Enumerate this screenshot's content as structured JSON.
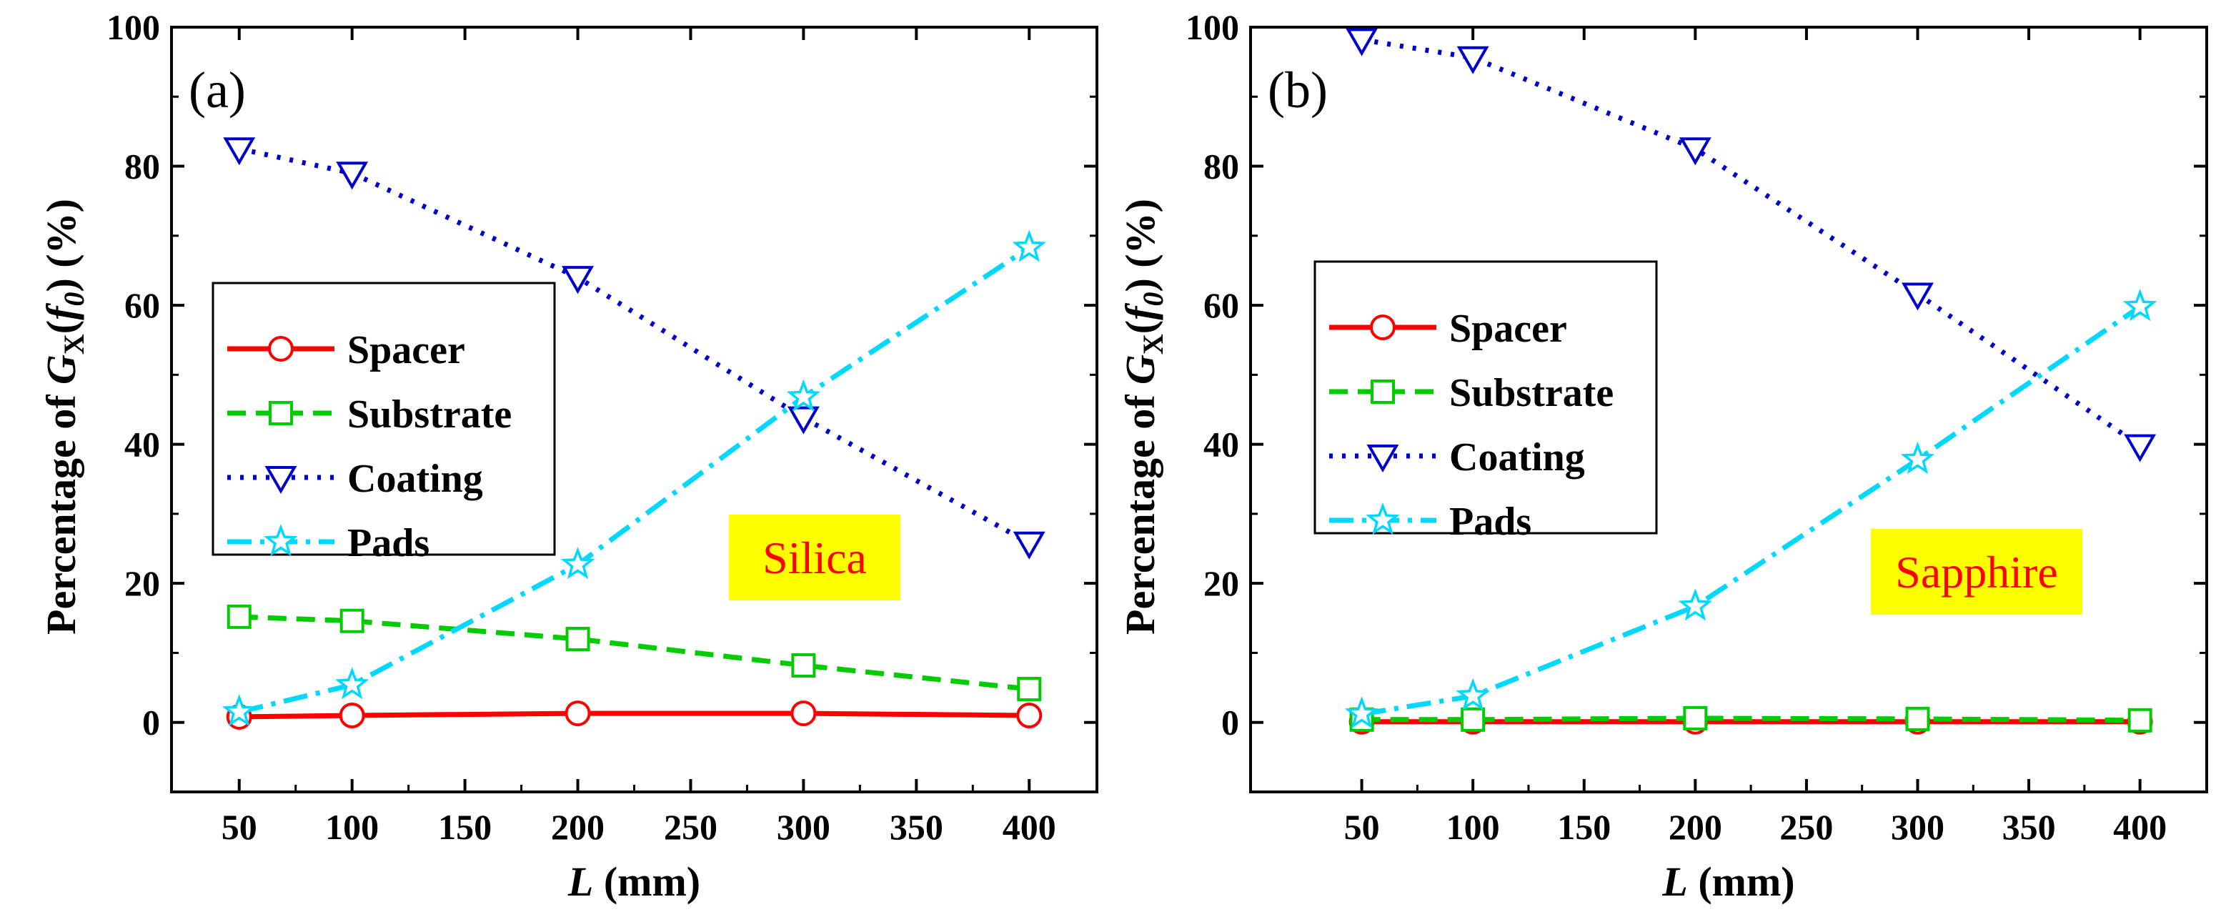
{
  "chart_data": [
    {
      "type": "line",
      "panel_label": "(a)",
      "badge": "Silica",
      "ylabel": {
        "prefix": "Percentage of ",
        "G": "G",
        "sub": "X",
        "open": "(",
        "f": "f",
        "fsub": "0",
        "close": ")",
        "suffix": " (%)"
      },
      "xlabel": {
        "var": "L",
        "unit": " (mm)"
      },
      "xlim": [
        20,
        430
      ],
      "ylim": [
        -10,
        100
      ],
      "xticks": [
        50,
        100,
        150,
        200,
        250,
        300,
        350,
        400
      ],
      "yticks": [
        0,
        20,
        40,
        60,
        80,
        100
      ],
      "x": [
        50,
        100,
        200,
        300,
        400
      ],
      "series": [
        {
          "name": "Spacer",
          "values": [
            0.8,
            1.0,
            1.3,
            1.3,
            1.0
          ]
        },
        {
          "name": "Substrate",
          "values": [
            15.2,
            14.6,
            12.0,
            8.2,
            4.8
          ]
        },
        {
          "name": "Coating",
          "values": [
            82.5,
            79.0,
            64.0,
            43.8,
            25.8
          ]
        },
        {
          "name": "Pads",
          "values": [
            1.5,
            5.4,
            22.7,
            46.8,
            68.3
          ]
        }
      ]
    },
    {
      "type": "line",
      "panel_label": "(b)",
      "badge": "Sapphire",
      "ylabel": {
        "prefix": "Percentage of ",
        "G": "G",
        "sub": "X",
        "open": "(",
        "f": "f",
        "fsub": "0",
        "close": ")",
        "suffix": " (%)"
      },
      "xlabel": {
        "var": "L",
        "unit": " (mm)"
      },
      "xlim": [
        0,
        430
      ],
      "ylim": [
        -10,
        100
      ],
      "xticks": [
        50,
        100,
        150,
        200,
        250,
        300,
        350,
        400
      ],
      "yticks": [
        0,
        20,
        40,
        60,
        80,
        100
      ],
      "x": [
        50,
        100,
        200,
        300,
        400
      ],
      "series": [
        {
          "name": "Spacer",
          "values": [
            0.1,
            0.1,
            0.1,
            0.1,
            0.1
          ]
        },
        {
          "name": "Substrate",
          "values": [
            0.4,
            0.4,
            0.6,
            0.5,
            0.3
          ]
        },
        {
          "name": "Coating",
          "values": [
            98.2,
            95.6,
            82.5,
            61.6,
            39.8
          ]
        },
        {
          "name": "Pads",
          "values": [
            1.2,
            3.8,
            16.7,
            37.8,
            59.8
          ]
        }
      ]
    }
  ],
  "styles": {
    "Spacer": {
      "color": "#ff0000",
      "marker": "circle",
      "dash": "none"
    },
    "Substrate": {
      "color": "#00cc00",
      "marker": "square",
      "dash": "26,14"
    },
    "Coating": {
      "color": "#0000cc",
      "marker": "triangle-down",
      "dash": "5,13"
    },
    "Pads": {
      "color": "#00d8ff",
      "marker": "star",
      "dash": "34,12,6,12"
    }
  },
  "badge_color": "#ffff00"
}
